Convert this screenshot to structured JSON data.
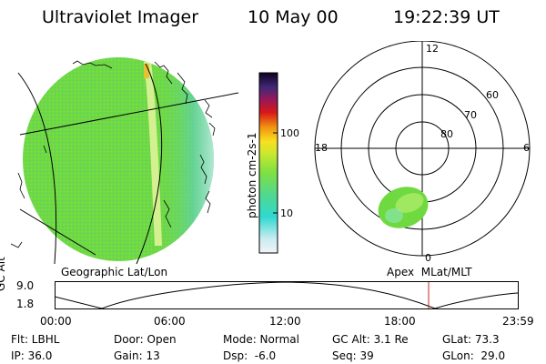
{
  "header": {
    "title": "Ultraviolet Imager",
    "date": "10 May 00",
    "time": "19:22:39 UT"
  },
  "colorbar": {
    "unit_label": "photon cm-2s-1",
    "ticks": [
      "100",
      "10"
    ]
  },
  "polar_plot": {
    "mlt_labels": {
      "top": "12",
      "left": "18",
      "right": "6",
      "bottom": "0"
    },
    "lat_labels": [
      "60",
      "70",
      "80"
    ]
  },
  "map_labels": {
    "left": "Geographic Lat/Lon",
    "right": "Apex  MLat/MLT"
  },
  "altitude_plot": {
    "ylabel": "GC Alt",
    "yticks": [
      "9.0",
      "1.8"
    ],
    "xticks": [
      "00:00",
      "06:00",
      "12:00",
      "18:00",
      "23:59"
    ]
  },
  "info": {
    "row1": [
      "Flt: LBHL",
      "Door: Open",
      "Mode: Normal",
      "GC Alt: 3.1 Re",
      "GLat: 73.3"
    ],
    "row2": [
      "IP: 36.0",
      "Gain: 13",
      "Dsp:  -6.0",
      "Seq: 39",
      "GLon:  29.0"
    ]
  },
  "colors": {
    "disk_green": "#6fd940",
    "disk_cyan": "#9fe8c8",
    "marker_red": "#cc2222"
  }
}
